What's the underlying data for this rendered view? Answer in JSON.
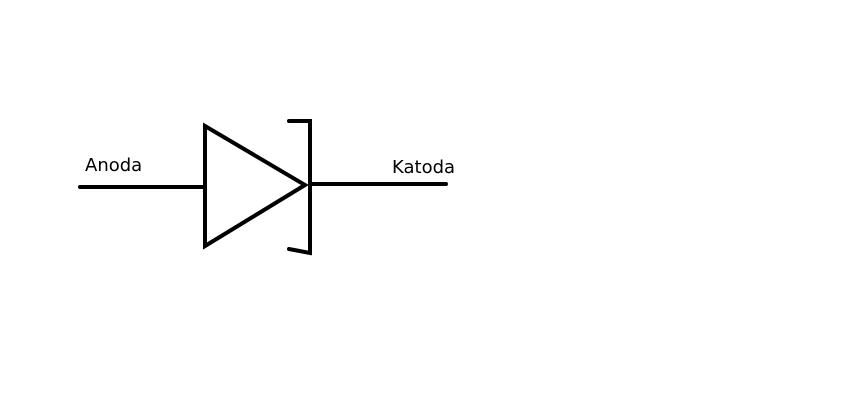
{
  "diagram": {
    "type": "diode-schematic",
    "labels": {
      "anode": "Anoda",
      "cathode": "Katoda"
    },
    "colors": {
      "stroke": "#000000",
      "background": "#ffffff"
    }
  }
}
